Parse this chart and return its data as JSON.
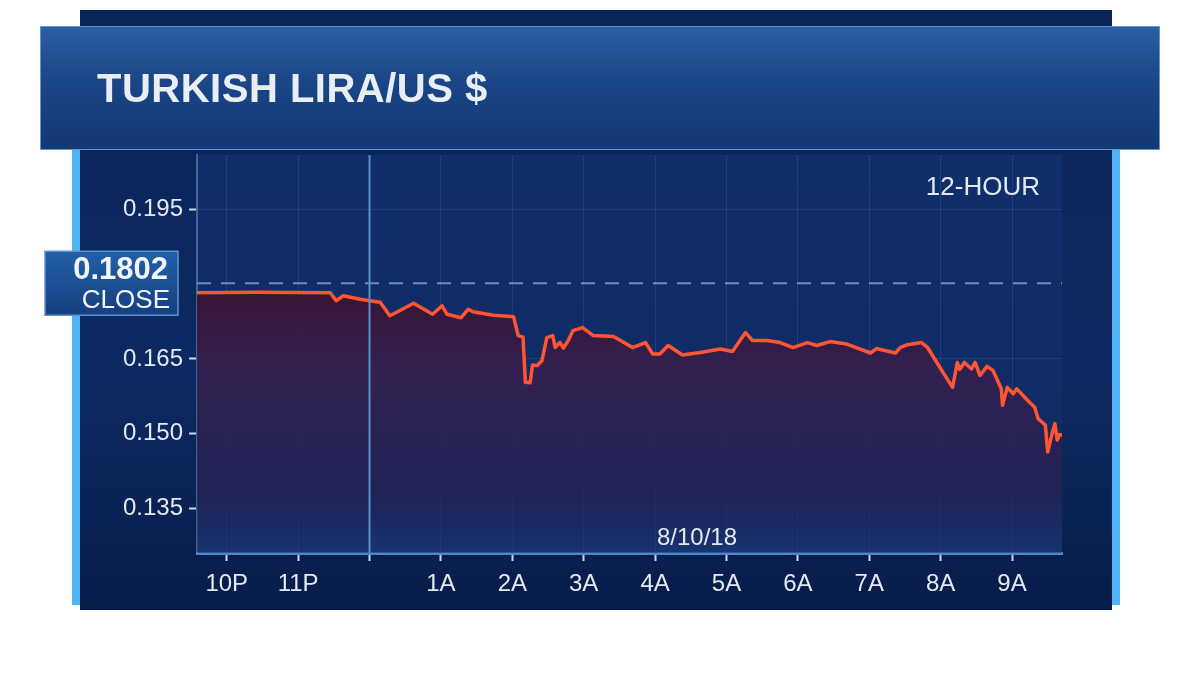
{
  "chart_data": {
    "type": "area",
    "title": "TURKISH LIRA/US $",
    "subtitle": "12-HOUR",
    "annotations": [
      "8/10/18"
    ],
    "x": [
      "--08-09T21:35",
      "--08-09T22:28",
      "--08-09T23:27",
      "--08-09T23:32",
      "--08-09T23:38",
      "--08-09T23:52",
      "--08-10T00:09",
      "--08-10T00:17",
      "--08-10T00:26",
      "--08-10T00:37",
      "--08-10T00:53",
      "--08-10T01:01",
      "--08-10T01:05",
      "--08-10T01:17",
      "--08-10T01:23",
      "--08-10T01:27",
      "--08-10T01:44",
      "--08-10T02:01",
      "--08-10T02:05",
      "--08-10T02:09",
      "--08-10T02:11",
      "--08-10T02:15",
      "--08-10T02:17",
      "--08-10T02:21",
      "--08-10T02:25",
      "--08-10T02:29",
      "--08-10T02:34",
      "--08-10T02:36",
      "--08-10T02:40",
      "--08-10T02:43",
      "--08-10T02:47",
      "--08-10T02:51",
      "--08-10T02:59",
      "--08-10T03:08",
      "--08-10T03:25",
      "--08-10T03:31",
      "--08-10T03:41",
      "--08-10T03:52",
      "--08-10T03:58",
      "--08-10T04:04",
      "--08-10T04:11",
      "--08-10T04:23",
      "--08-10T04:38",
      "--08-10T04:55",
      "--08-10T05:05",
      "--08-10T05:16",
      "--08-10T05:22",
      "--08-10T05:34",
      "--08-10T05:45",
      "--08-10T05:56",
      "--08-10T06:08",
      "--08-10T06:16",
      "--08-10T06:27",
      "--08-10T06:41",
      "--08-10T06:49",
      "--08-10T07:01",
      "--08-10T07:06",
      "--08-10T07:22",
      "--08-10T07:26",
      "--08-10T07:31",
      "--08-10T07:44",
      "--08-10T07:49",
      "--08-10T07:55",
      "--08-10T08:02",
      "--08-10T08:10",
      "--08-10T08:14",
      "--08-10T08:16",
      "--08-10T08:20",
      "--08-10T08:26",
      "--08-10T08:29",
      "--08-10T08:33",
      "--08-10T08:39",
      "--08-10T08:44",
      "--08-10T08:51",
      "--08-10T08:52",
      "--08-10T08:56",
      "--08-10T09:01",
      "--08-10T09:04",
      "--08-10T09:13",
      "--08-10T09:19",
      "--08-10T09:22",
      "--08-10T09:28",
      "--08-10T09:30",
      "--08-10T09:34",
      "--08-10T09:36",
      "--08-10T09:38",
      "--08-10T09:40",
      "--08-10T09:42"
    ],
    "values": [
      0.1783,
      0.1784,
      0.1783,
      0.1767,
      0.1777,
      0.177,
      0.1764,
      0.1737,
      0.1748,
      0.1762,
      0.174,
      0.1757,
      0.174,
      0.1733,
      0.175,
      0.1745,
      0.1738,
      0.1735,
      0.1697,
      0.1694,
      0.1603,
      0.1602,
      0.1638,
      0.1637,
      0.1647,
      0.1693,
      0.1697,
      0.1673,
      0.1683,
      0.1672,
      0.1687,
      0.1707,
      0.1713,
      0.1697,
      0.1695,
      0.1687,
      0.1673,
      0.1683,
      0.166,
      0.166,
      0.1677,
      0.1658,
      0.1663,
      0.167,
      0.1665,
      0.1703,
      0.1687,
      0.1687,
      0.1683,
      0.1673,
      0.1683,
      0.1677,
      0.1685,
      0.168,
      0.1673,
      0.1662,
      0.1671,
      0.1662,
      0.1673,
      0.1678,
      0.1683,
      0.1673,
      0.165,
      0.1623,
      0.1593,
      0.1643,
      0.1629,
      0.1643,
      0.163,
      0.1643,
      0.1617,
      0.1635,
      0.1627,
      0.159,
      0.1557,
      0.1593,
      0.158,
      0.159,
      0.1567,
      0.1553,
      0.153,
      0.1517,
      0.1463,
      0.1503,
      0.152,
      0.1487,
      0.1498,
      0.1497
    ],
    "color": "#ff5533",
    "xlim": [
      "--08-09T21:35",
      "--08-10T09:42"
    ],
    "xticks": [
      {
        "value": "--08-09T22:00",
        "label": "10P"
      },
      {
        "value": "--08-09T23:00",
        "label": "11P"
      },
      {
        "value": "--08-10T00:00",
        "label": null
      },
      {
        "value": "--08-10T01:00",
        "label": "1A"
      },
      {
        "value": "--08-10T02:00",
        "label": "2A"
      },
      {
        "value": "--08-10T03:00",
        "label": "3A"
      },
      {
        "value": "--08-10T04:00",
        "label": "4A"
      },
      {
        "value": "--08-10T05:00",
        "label": "5A"
      },
      {
        "value": "--08-10T06:00",
        "label": "6A"
      },
      {
        "value": "--08-10T07:00",
        "label": "7A"
      },
      {
        "value": "--08-10T08:00",
        "label": "8A"
      },
      {
        "value": "--08-10T09:00",
        "label": "9A"
      }
    ],
    "ylim": [
      0.126,
      0.206
    ],
    "yticks": [
      0.135,
      {
        "value": 0.15,
        "label": "0.150"
      },
      0.165,
      0.195
    ],
    "ref_lines": [
      {
        "axis": "y",
        "value": 0.1802,
        "label": "0.1802 CLOSE",
        "line_style": "dashed",
        "color": "#6f8fb8"
      },
      {
        "axis": "x",
        "value": "--08-10T00:00",
        "color": "#5b8fc7"
      }
    ],
    "grid": true,
    "marker": "none"
  }
}
